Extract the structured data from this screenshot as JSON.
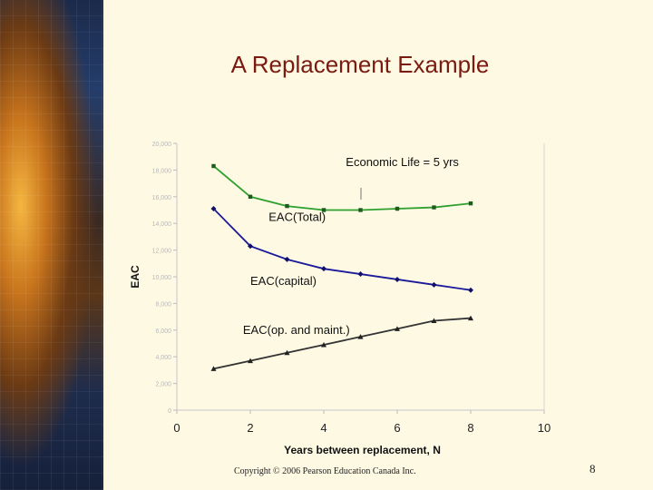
{
  "slide": {
    "title": "A Replacement Example",
    "copyright": "Copyright © 2006 Pearson Education Canada Inc.",
    "page_number": "8"
  },
  "chart_data": {
    "type": "line",
    "title": "",
    "xlabel": "Years between replacement, N",
    "ylabel": "EAC",
    "xlim": [
      0,
      10
    ],
    "ylim": [
      0,
      20000
    ],
    "x_ticks": [
      0,
      2,
      4,
      6,
      8,
      10
    ],
    "y_ticks": [
      0,
      2000,
      4000,
      6000,
      8000,
      10000,
      12000,
      14000,
      16000,
      18000,
      20000
    ],
    "y_tick_labels": [
      "0",
      "2,000",
      "4,000",
      "6,000",
      "8,000",
      "10,000",
      "12,000",
      "14,000",
      "16,000",
      "18,000",
      "20,000"
    ],
    "grid": false,
    "x": [
      1,
      2,
      3,
      4,
      5,
      6,
      7,
      8
    ],
    "series": [
      {
        "name": "EAC(Total)",
        "color": "#2ea02e",
        "marker": "square",
        "values": [
          18300,
          16000,
          15300,
          15000,
          15000,
          15100,
          15200,
          15500
        ]
      },
      {
        "name": "EAC(capital)",
        "color": "#1a1a9a",
        "marker": "diamond",
        "values": [
          15100,
          12300,
          11300,
          10600,
          10200,
          9800,
          9400,
          9000
        ]
      },
      {
        "name": "EAC(op. and maint.)",
        "color": "#333333",
        "marker": "triangle",
        "values": [
          3100,
          3700,
          4300,
          4900,
          5500,
          6100,
          6700,
          6900
        ]
      }
    ],
    "annotations": [
      {
        "text": "Economic Life = 5 yrs",
        "x": 4.6,
        "y": 18300
      },
      {
        "text": "EAC(Total)",
        "x": 2.5,
        "y": 14200
      },
      {
        "text": "EAC(capital)",
        "x": 2.0,
        "y": 9400
      },
      {
        "text": "EAC(op. and maint.)",
        "x": 1.8,
        "y": 5700
      }
    ]
  }
}
